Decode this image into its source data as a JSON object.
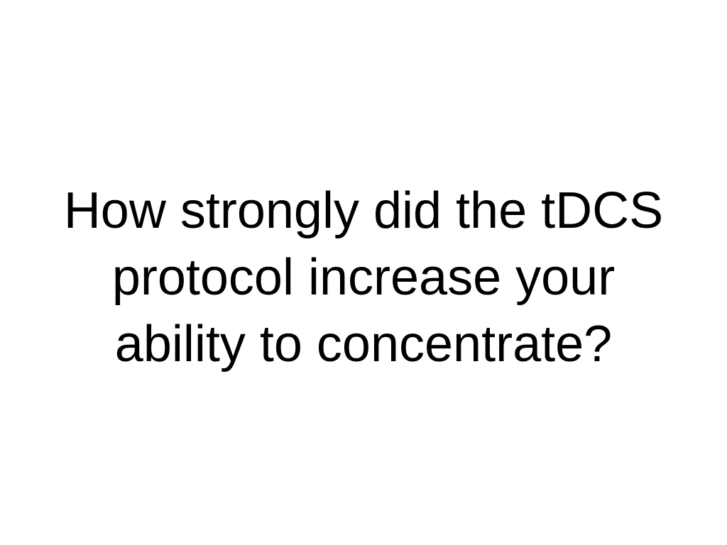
{
  "question": {
    "lines": [
      "How strongly did the tDCS",
      "protocol increase your",
      "ability to concentrate?"
    ]
  },
  "colors": {
    "background": "#ffffff",
    "text": "#000000"
  }
}
